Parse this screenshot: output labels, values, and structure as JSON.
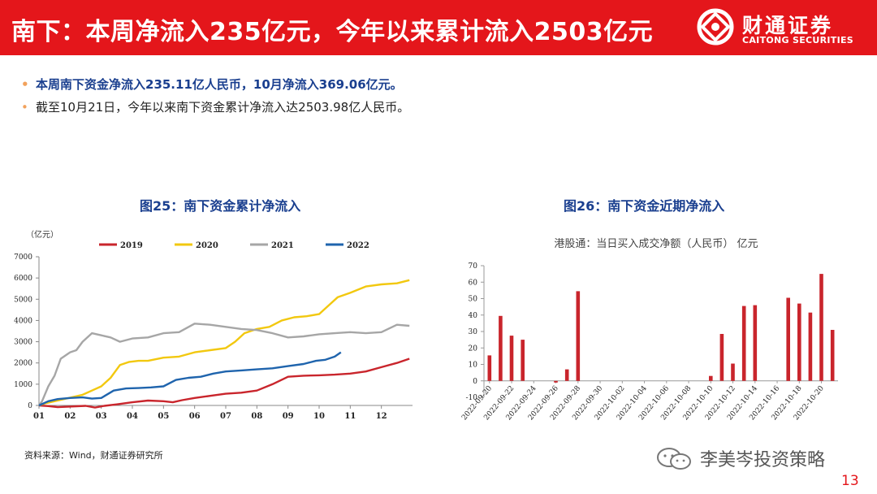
{
  "header": {
    "title": "南下：本周净流入235亿元，今年以来累计流入2503亿元",
    "logo_cn": "财通证券",
    "logo_en": "CAITONG SECURITIES"
  },
  "bullets": [
    "本周南下资金净流入235.11亿人民币，10月净流入369.06亿元。",
    "截至10月21日，今年以来南下资金累计净流入达2503.98亿人民币。"
  ],
  "figures": {
    "fig25_title": "图25：南下资金累计净流入",
    "fig26_title": "图26：南下资金近期净流入"
  },
  "source": "资料来源：Wind，财通证券研究所",
  "watermark": "李美岑投资策略",
  "page_number": "13",
  "colors": {
    "brand_red": "#e4161b",
    "series_2019": "#c9252c",
    "series_2020": "#f2c80f",
    "series_2021": "#a6a6a6",
    "series_2022": "#1f64ad",
    "bar": "#c9252c"
  },
  "chart_data": [
    {
      "type": "line",
      "title": "图25：南下资金累计净流入",
      "ylabel": "（亿元）",
      "ylim": [
        0,
        7000
      ],
      "yticks": [
        0,
        1000,
        2000,
        3000,
        4000,
        5000,
        6000,
        7000
      ],
      "xlim": [
        1,
        13
      ],
      "xtick_labels": [
        "01",
        "02",
        "03",
        "04",
        "05",
        "06",
        "07",
        "08",
        "09",
        "10",
        "11",
        "12"
      ],
      "x_unit": "month",
      "series": [
        {
          "name": "2019",
          "x": [
            1,
            1.3,
            1.6,
            1.9,
            2.2,
            2.5,
            2.8,
            3.1,
            3.5,
            4.0,
            4.5,
            5.0,
            5.3,
            5.6,
            6.0,
            6.5,
            7.0,
            7.5,
            8.0,
            8.5,
            9.0,
            9.5,
            10.0,
            10.5,
            11.0,
            11.5,
            12.0,
            12.5,
            12.9
          ],
          "values": [
            0,
            -30,
            -80,
            -60,
            -40,
            -20,
            -100,
            -20,
            50,
            150,
            230,
            200,
            150,
            250,
            350,
            450,
            550,
            600,
            700,
            1000,
            1350,
            1400,
            1420,
            1450,
            1500,
            1600,
            1800,
            2000,
            2200
          ]
        },
        {
          "name": "2020",
          "x": [
            1,
            1.2,
            1.5,
            1.8,
            2.1,
            2.4,
            2.7,
            3.0,
            3.3,
            3.6,
            3.9,
            4.2,
            4.5,
            5.0,
            5.5,
            6.0,
            6.5,
            7.0,
            7.3,
            7.6,
            8.0,
            8.4,
            8.8,
            9.2,
            9.6,
            10.0,
            10.3,
            10.6,
            11.0,
            11.5,
            12.0,
            12.5,
            12.9
          ],
          "values": [
            0,
            100,
            200,
            300,
            400,
            500,
            700,
            900,
            1300,
            1900,
            2050,
            2100,
            2100,
            2250,
            2300,
            2500,
            2600,
            2700,
            3000,
            3400,
            3600,
            3700,
            4000,
            4150,
            4200,
            4300,
            4700,
            5100,
            5300,
            5600,
            5700,
            5750,
            5900
          ]
        },
        {
          "name": "2021",
          "x": [
            1,
            1.1,
            1.3,
            1.5,
            1.7,
            2.0,
            2.2,
            2.4,
            2.7,
            3.0,
            3.3,
            3.6,
            4.0,
            4.5,
            5.0,
            5.5,
            6.0,
            6.5,
            7.0,
            7.5,
            8.0,
            8.5,
            9.0,
            9.5,
            10.0,
            10.5,
            11.0,
            11.5,
            12.0,
            12.5,
            12.9
          ],
          "values": [
            0,
            200,
            900,
            1400,
            2200,
            2500,
            2600,
            3000,
            3400,
            3300,
            3200,
            3000,
            3150,
            3200,
            3400,
            3450,
            3850,
            3800,
            3700,
            3600,
            3550,
            3400,
            3200,
            3250,
            3350,
            3400,
            3450,
            3400,
            3450,
            3800,
            3750
          ]
        },
        {
          "name": "2022",
          "x": [
            1,
            1.3,
            1.6,
            2.0,
            2.4,
            2.7,
            3.0,
            3.4,
            3.8,
            4.2,
            4.6,
            5.0,
            5.4,
            5.8,
            6.2,
            6.6,
            7.0,
            7.5,
            8.0,
            8.5,
            9.0,
            9.5,
            9.9,
            10.2,
            10.5,
            10.7
          ],
          "values": [
            0,
            200,
            300,
            350,
            380,
            320,
            350,
            700,
            800,
            820,
            850,
            900,
            1200,
            1300,
            1350,
            1500,
            1600,
            1650,
            1700,
            1750,
            1850,
            1950,
            2100,
            2150,
            2300,
            2500
          ]
        }
      ]
    },
    {
      "type": "bar",
      "title": "图26：南下资金近期净流入",
      "subtitle": "港股通：当日买入成交净额（人民币） 亿元",
      "ylim": [
        -10,
        70
      ],
      "yticks": [
        -10,
        0,
        10,
        20,
        30,
        40,
        50,
        60,
        70
      ],
      "xtick_labels": [
        "2022-09-20",
        "2022-09-22",
        "2022-09-24",
        "2022-09-26",
        "2022-09-28",
        "2022-09-30",
        "2022-10-02",
        "2022-10-04",
        "2022-10-06",
        "2022-10-08",
        "2022-10-10",
        "2022-10-12",
        "2022-10-14",
        "2022-10-16",
        "2022-10-18",
        "2022-10-20"
      ],
      "categories": [
        "2022-09-20",
        "2022-09-21",
        "2022-09-22",
        "2022-09-23",
        "2022-09-24",
        "2022-09-25",
        "2022-09-26",
        "2022-09-27",
        "2022-09-28",
        "2022-09-29",
        "2022-09-30",
        "2022-10-01",
        "2022-10-02",
        "2022-10-03",
        "2022-10-04",
        "2022-10-05",
        "2022-10-06",
        "2022-10-07",
        "2022-10-08",
        "2022-10-09",
        "2022-10-10",
        "2022-10-11",
        "2022-10-12",
        "2022-10-13",
        "2022-10-14",
        "2022-10-15",
        "2022-10-16",
        "2022-10-17",
        "2022-10-18",
        "2022-10-19",
        "2022-10-20",
        "2022-10-21"
      ],
      "values": [
        15.5,
        39.5,
        27.5,
        25,
        0,
        0,
        -1,
        7,
        54.5,
        0,
        0,
        0,
        0,
        0,
        0,
        0,
        0,
        0,
        0,
        0,
        3,
        28.5,
        10.5,
        45.5,
        46,
        0,
        0,
        50.5,
        47,
        41.5,
        65,
        31
      ]
    }
  ]
}
